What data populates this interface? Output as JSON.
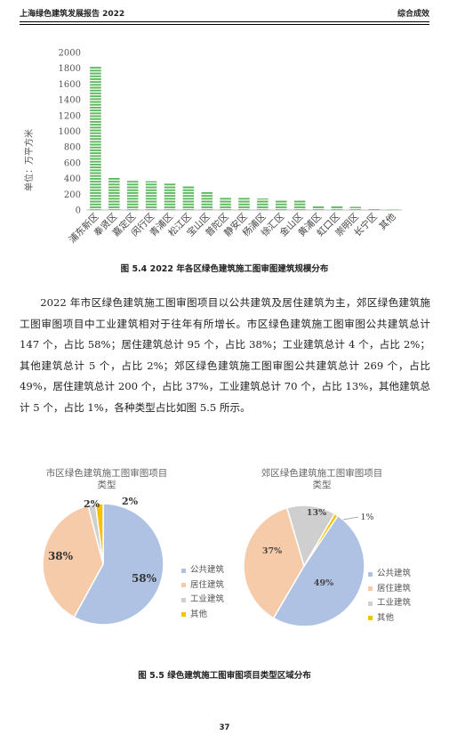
{
  "header": {
    "left": "上海绿色建筑发展报告 2022",
    "right": "综合成效"
  },
  "figure_54": {
    "caption": "图 5.4    2022 年各区绿色建筑施工图审图建筑规模分布",
    "bar_color": "#5cb85c"
  },
  "paragraph": "2022 年市区绿色建筑施工图审图项目以公共建筑及居住建筑为主，郊区绿色建筑施工图审图项目中工业建筑相对于往年有所增长。市区绿色建筑施工图审图公共建筑总计 147 个，占比 58%；居住建筑总计 95 个，占比 38%；工业建筑总计 4 个，占比 2%；其他建筑总计 5 个，占比 2%；郊区绿色建筑施工图审图公共建筑总计 269 个，占比 49%，居住建筑总计 200 个，占比 37%，工业建筑总计 70 个，占比 13%，其他建筑总计 5 个，占比 1%，各种类型占比如图 5.5 所示。",
  "figure_55": {
    "caption": "图 5.5    绿色建筑施工图审图项目类型区域分布",
    "legend": [
      "公共建筑",
      "居住建筑",
      "工业建筑",
      "其他"
    ],
    "colors": [
      "#b0c2e4",
      "#f6cba9",
      "#cfcfcf",
      "#f5c200"
    ]
  },
  "page_number": "37",
  "chart_data": [
    {
      "type": "bar",
      "title": "",
      "ylabel": "单位：万平方米",
      "xlabel": "",
      "categories": [
        "浦东新区",
        "奉贤区",
        "嘉定区",
        "闵行区",
        "青浦区",
        "松江区",
        "宝山区",
        "普陀区",
        "静安区",
        "杨浦区",
        "徐汇区",
        "金山区",
        "黄浦区",
        "虹口区",
        "崇明区",
        "长宁区",
        "其他"
      ],
      "values": [
        1820,
        410,
        370,
        365,
        340,
        300,
        240,
        165,
        155,
        145,
        130,
        125,
        50,
        45,
        40,
        20,
        5
      ],
      "ylim": [
        0,
        2000
      ],
      "yticks": [
        "0",
        "200",
        "400",
        "600",
        "800",
        "1000",
        "1200",
        "1400",
        "1600",
        "1800",
        "2000"
      ],
      "grid": false,
      "legend": "none"
    },
    {
      "type": "pie",
      "title": "市区绿色建筑施工图审图项目类型",
      "categories": [
        "公共建筑",
        "居住建筑",
        "工业建筑",
        "其他"
      ],
      "values": [
        58,
        38,
        2,
        2
      ],
      "labels": [
        "58%",
        "38%",
        "2%",
        "2%"
      ],
      "legend": "right"
    },
    {
      "type": "pie",
      "title": "郊区绿色建筑施工图审图项目类型",
      "categories": [
        "公共建筑",
        "居住建筑",
        "工业建筑",
        "其他"
      ],
      "values": [
        49,
        37,
        13,
        1
      ],
      "labels": [
        "49%",
        "37%",
        "13%",
        "1%"
      ],
      "legend": "right"
    }
  ]
}
